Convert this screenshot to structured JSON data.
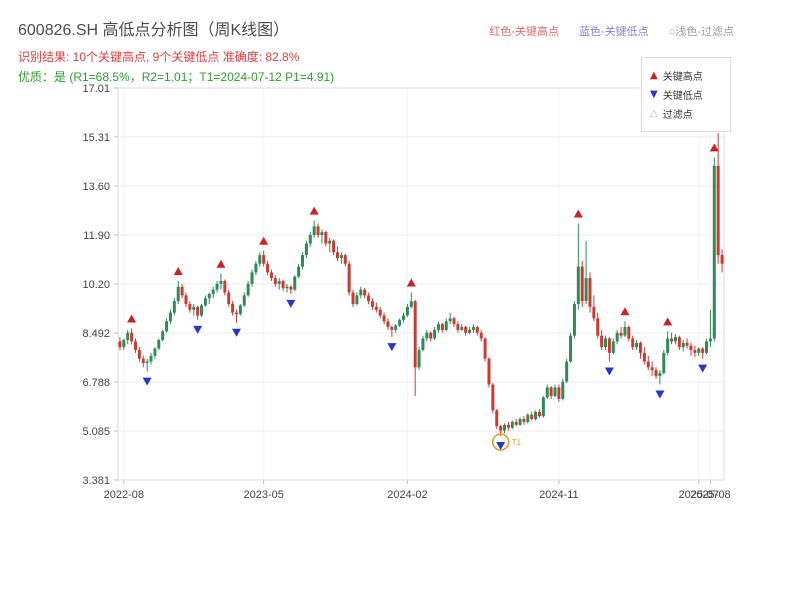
{
  "header": {
    "title": "600826.SH 高低点分析图（周K线图）",
    "legend_top": [
      {
        "label": "红色-关键高点",
        "color": "#e06c6c"
      },
      {
        "label": "蓝色-关键低点",
        "color": "#7b86d8"
      },
      {
        "label": "○浅色-过滤点",
        "color": "#999999"
      }
    ],
    "result_line": "识别结果: 10个关键高点, 9个关键低点  准确度: 82.8%",
    "quality_line": "优质：是 (R1=68.5%，R2=1.01；T1=2024-07-12 P1=4.91)"
  },
  "chart_data": {
    "type": "candlestick",
    "symbol": "600826.SH",
    "period": "weekly",
    "title": "600826.SH 高低点分析图（周K线图）",
    "ylim": [
      3.381,
      17.01
    ],
    "ytick_labels": [
      "17.01",
      "15.31",
      "13.60",
      "11.90",
      "10.20",
      "8.492",
      "6.788",
      "5.085",
      "3.381"
    ],
    "xticks": [
      {
        "index": 1,
        "label": "2022-08"
      },
      {
        "index": 37,
        "label": "2023-05"
      },
      {
        "index": 74,
        "label": "2024-02"
      },
      {
        "index": 113,
        "label": "2024-11"
      },
      {
        "index": 149,
        "label": "2025-07"
      },
      {
        "index": 152,
        "label": "2025-08"
      }
    ],
    "colors": {
      "up": "#2e8b57",
      "down": "#cb3b31",
      "key_high": "#cc2222",
      "key_low": "#2a35c8",
      "filter": "#e8991c",
      "grid": "#ececec",
      "axis": "#bbbbbb",
      "tick_text": "#444444"
    },
    "legend_box": [
      {
        "symbol": "▲",
        "label": "关键高点",
        "color": "#cc2222"
      },
      {
        "symbol": "▼",
        "label": "关键低点",
        "color": "#2a35c8"
      },
      {
        "symbol": "△",
        "label": "过滤点",
        "color": "#bbbbbb"
      }
    ],
    "candles": [
      [
        8.2,
        8.35,
        7.9,
        8.0
      ],
      [
        8.0,
        8.3,
        7.9,
        8.25
      ],
      [
        8.25,
        8.6,
        8.1,
        8.5
      ],
      [
        8.5,
        8.65,
        8.1,
        8.2
      ],
      [
        8.2,
        8.3,
        7.8,
        7.9
      ],
      [
        7.9,
        8.0,
        7.5,
        7.6
      ],
      [
        7.6,
        7.7,
        7.3,
        7.45
      ],
      [
        7.45,
        7.6,
        7.15,
        7.5
      ],
      [
        7.5,
        7.8,
        7.4,
        7.7
      ],
      [
        7.7,
        8.0,
        7.6,
        7.95
      ],
      [
        7.95,
        8.3,
        7.9,
        8.25
      ],
      [
        8.25,
        8.6,
        8.2,
        8.55
      ],
      [
        8.55,
        9.0,
        8.5,
        8.9
      ],
      [
        8.9,
        9.3,
        8.8,
        9.2
      ],
      [
        9.2,
        9.7,
        9.1,
        9.6
      ],
      [
        9.6,
        10.3,
        9.5,
        10.1
      ],
      [
        10.1,
        10.2,
        9.7,
        9.8
      ],
      [
        9.8,
        9.9,
        9.4,
        9.5
      ],
      [
        9.5,
        9.6,
        9.2,
        9.3
      ],
      [
        9.3,
        9.5,
        9.1,
        9.4
      ],
      [
        9.4,
        9.45,
        8.95,
        9.1
      ],
      [
        9.1,
        9.5,
        9.05,
        9.45
      ],
      [
        9.45,
        9.8,
        9.4,
        9.7
      ],
      [
        9.7,
        9.9,
        9.5,
        9.85
      ],
      [
        9.85,
        10.1,
        9.7,
        10.0
      ],
      [
        10.0,
        10.3,
        9.9,
        10.2
      ],
      [
        10.2,
        10.55,
        10.0,
        10.3
      ],
      [
        10.3,
        10.35,
        9.8,
        9.9
      ],
      [
        9.9,
        10.0,
        9.4,
        9.5
      ],
      [
        9.5,
        9.6,
        9.1,
        9.2
      ],
      [
        9.2,
        9.3,
        8.85,
        9.15
      ],
      [
        9.15,
        9.5,
        9.1,
        9.45
      ],
      [
        9.45,
        9.9,
        9.4,
        9.8
      ],
      [
        9.8,
        10.3,
        9.75,
        10.2
      ],
      [
        10.2,
        10.7,
        10.1,
        10.6
      ],
      [
        10.6,
        11.0,
        10.5,
        10.9
      ],
      [
        10.9,
        11.3,
        10.8,
        11.2
      ],
      [
        11.2,
        11.35,
        10.8,
        10.9
      ],
      [
        10.9,
        11.0,
        10.5,
        10.6
      ],
      [
        10.6,
        10.7,
        10.3,
        10.4
      ],
      [
        10.4,
        10.5,
        10.1,
        10.2
      ],
      [
        10.2,
        10.4,
        10.0,
        10.3
      ],
      [
        10.3,
        10.35,
        9.95,
        10.05
      ],
      [
        10.05,
        10.2,
        9.9,
        10.1
      ],
      [
        10.1,
        10.15,
        9.85,
        10.0
      ],
      [
        10.0,
        10.5,
        9.95,
        10.45
      ],
      [
        10.45,
        10.9,
        10.4,
        10.8
      ],
      [
        10.8,
        11.3,
        10.7,
        11.2
      ],
      [
        11.2,
        11.7,
        11.1,
        11.6
      ],
      [
        11.6,
        12.0,
        11.5,
        11.9
      ],
      [
        11.9,
        12.4,
        11.8,
        12.2
      ],
      [
        12.2,
        12.3,
        11.8,
        11.9
      ],
      [
        11.9,
        12.1,
        11.6,
        12.0
      ],
      [
        12.0,
        12.05,
        11.5,
        11.6
      ],
      [
        11.6,
        11.8,
        11.3,
        11.7
      ],
      [
        11.7,
        11.75,
        11.2,
        11.3
      ],
      [
        11.3,
        11.5,
        11.0,
        11.1
      ],
      [
        11.1,
        11.3,
        10.9,
        11.2
      ],
      [
        11.2,
        11.25,
        10.8,
        10.9
      ],
      [
        10.9,
        11.0,
        9.8,
        9.9
      ],
      [
        9.9,
        10.0,
        9.4,
        9.5
      ],
      [
        9.5,
        9.9,
        9.45,
        9.8
      ],
      [
        9.8,
        10.1,
        9.7,
        10.0
      ],
      [
        10.0,
        10.05,
        9.7,
        9.8
      ],
      [
        9.8,
        9.9,
        9.5,
        9.6
      ],
      [
        9.6,
        9.7,
        9.3,
        9.4
      ],
      [
        9.4,
        9.55,
        9.2,
        9.3
      ],
      [
        9.3,
        9.4,
        9.0,
        9.1
      ],
      [
        9.1,
        9.2,
        8.8,
        8.9
      ],
      [
        8.9,
        9.0,
        8.6,
        8.7
      ],
      [
        8.7,
        8.75,
        8.35,
        8.6
      ],
      [
        8.6,
        8.8,
        8.5,
        8.75
      ],
      [
        8.75,
        9.0,
        8.7,
        8.95
      ],
      [
        8.95,
        9.2,
        8.85,
        9.1
      ],
      [
        9.1,
        9.5,
        9.05,
        9.4
      ],
      [
        9.4,
        9.9,
        9.35,
        9.6
      ],
      [
        9.6,
        9.65,
        6.3,
        7.3
      ],
      [
        7.3,
        8.0,
        7.2,
        7.9
      ],
      [
        7.9,
        8.4,
        7.85,
        8.3
      ],
      [
        8.3,
        8.6,
        8.2,
        8.5
      ],
      [
        8.5,
        8.55,
        8.2,
        8.3
      ],
      [
        8.3,
        8.7,
        8.25,
        8.6
      ],
      [
        8.6,
        8.9,
        8.5,
        8.8
      ],
      [
        8.8,
        8.85,
        8.5,
        8.6
      ],
      [
        8.6,
        9.0,
        8.55,
        8.9
      ],
      [
        8.9,
        9.2,
        8.8,
        9.0
      ],
      [
        9.0,
        9.05,
        8.7,
        8.8
      ],
      [
        8.8,
        8.9,
        8.5,
        8.6
      ],
      [
        8.6,
        8.8,
        8.55,
        8.7
      ],
      [
        8.7,
        8.75,
        8.4,
        8.5
      ],
      [
        8.5,
        8.7,
        8.45,
        8.6
      ],
      [
        8.6,
        8.8,
        8.5,
        8.7
      ],
      [
        8.7,
        8.75,
        8.4,
        8.5
      ],
      [
        8.5,
        8.6,
        8.2,
        8.3
      ],
      [
        8.3,
        8.35,
        7.5,
        7.6
      ],
      [
        7.6,
        7.65,
        6.6,
        6.7
      ],
      [
        6.7,
        6.75,
        5.7,
        5.8
      ],
      [
        5.8,
        5.85,
        5.15,
        5.25
      ],
      [
        5.25,
        5.3,
        4.91,
        5.1
      ],
      [
        5.1,
        5.35,
        5.0,
        5.3
      ],
      [
        5.3,
        5.4,
        5.1,
        5.2
      ],
      [
        5.2,
        5.45,
        5.15,
        5.4
      ],
      [
        5.4,
        5.5,
        5.25,
        5.3
      ],
      [
        5.3,
        5.55,
        5.25,
        5.5
      ],
      [
        5.5,
        5.6,
        5.3,
        5.4
      ],
      [
        5.4,
        5.7,
        5.35,
        5.65
      ],
      [
        5.65,
        5.75,
        5.45,
        5.5
      ],
      [
        5.5,
        5.8,
        5.45,
        5.75
      ],
      [
        5.75,
        5.85,
        5.55,
        5.6
      ],
      [
        5.6,
        6.3,
        5.55,
        6.25
      ],
      [
        6.25,
        6.7,
        6.2,
        6.6
      ],
      [
        6.6,
        6.65,
        6.2,
        6.3
      ],
      [
        6.3,
        6.7,
        6.25,
        6.6
      ],
      [
        6.6,
        6.7,
        6.1,
        6.2
      ],
      [
        6.2,
        6.9,
        6.15,
        6.8
      ],
      [
        6.8,
        7.6,
        6.75,
        7.5
      ],
      [
        7.5,
        8.5,
        7.45,
        8.4
      ],
      [
        8.4,
        9.6,
        8.3,
        9.5
      ],
      [
        9.5,
        12.3,
        9.3,
        10.8
      ],
      [
        10.8,
        11.0,
        9.4,
        9.6
      ],
      [
        9.6,
        11.7,
        9.5,
        10.4
      ],
      [
        10.4,
        10.6,
        9.2,
        9.4
      ],
      [
        9.4,
        9.8,
        8.9,
        9.0
      ],
      [
        9.0,
        9.2,
        8.3,
        8.4
      ],
      [
        8.4,
        8.6,
        7.9,
        8.0
      ],
      [
        8.0,
        8.4,
        7.9,
        8.3
      ],
      [
        8.3,
        8.35,
        7.5,
        7.8
      ],
      [
        7.8,
        8.3,
        7.75,
        8.2
      ],
      [
        8.2,
        8.6,
        8.1,
        8.5
      ],
      [
        8.5,
        8.7,
        8.3,
        8.4
      ],
      [
        8.4,
        8.9,
        8.35,
        8.7
      ],
      [
        8.7,
        8.75,
        8.2,
        8.3
      ],
      [
        8.3,
        8.4,
        7.9,
        8.0
      ],
      [
        8.0,
        8.25,
        7.9,
        8.15
      ],
      [
        8.15,
        8.2,
        7.6,
        7.8
      ],
      [
        7.8,
        8.0,
        7.4,
        7.5
      ],
      [
        7.5,
        7.7,
        7.2,
        7.3
      ],
      [
        7.3,
        7.5,
        7.0,
        7.2
      ],
      [
        7.2,
        7.3,
        6.9,
        7.0
      ],
      [
        7.0,
        7.2,
        6.7,
        7.1
      ],
      [
        7.1,
        7.9,
        7.05,
        7.8
      ],
      [
        7.8,
        8.55,
        7.7,
        8.3
      ],
      [
        8.3,
        8.5,
        8.1,
        8.2
      ],
      [
        8.2,
        8.45,
        8.1,
        8.35
      ],
      [
        8.35,
        8.4,
        7.9,
        8.0
      ],
      [
        8.0,
        8.25,
        7.85,
        8.15
      ],
      [
        8.15,
        8.3,
        7.95,
        8.05
      ],
      [
        8.05,
        8.15,
        7.7,
        7.9
      ],
      [
        7.9,
        8.05,
        7.65,
        7.8
      ],
      [
        7.8,
        8.0,
        7.7,
        7.95
      ],
      [
        7.95,
        8.0,
        7.6,
        7.8
      ],
      [
        7.8,
        8.3,
        7.75,
        8.2
      ],
      [
        8.2,
        9.3,
        8.0,
        8.3
      ],
      [
        8.3,
        14.6,
        8.2,
        14.3
      ],
      [
        14.3,
        15.45,
        10.9,
        11.2
      ],
      [
        11.2,
        11.4,
        10.6,
        10.9
      ]
    ],
    "key_high_indices": [
      3,
      15,
      26,
      37,
      50,
      75,
      118,
      130,
      141,
      153
    ],
    "key_low_indices": [
      7,
      20,
      30,
      44,
      70,
      98,
      126,
      139,
      150
    ],
    "filtered_point": {
      "index": 98,
      "price": 4.91,
      "label": "T1"
    }
  }
}
